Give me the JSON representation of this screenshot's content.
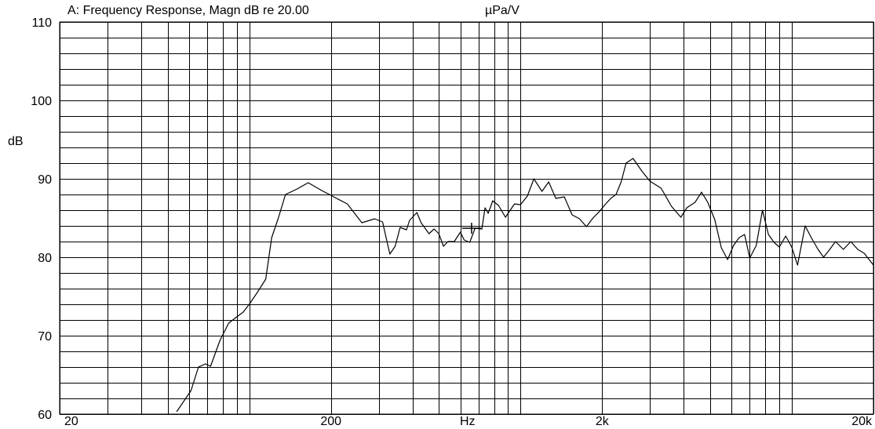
{
  "header": {
    "title": "A: Frequency Response, Magn dB re 20.00",
    "unit": "µPa/V"
  },
  "chart_data": {
    "type": "line",
    "title": "A: Frequency Response, Magn dB re 20.00",
    "ylabel": "dB",
    "xlabel": "Hz",
    "x_scale": "log",
    "xlim": [
      20,
      20000
    ],
    "ylim": [
      60,
      110
    ],
    "grid": true,
    "x_ticks": [
      {
        "value": 20,
        "label": "20"
      },
      {
        "value": 200,
        "label": "200"
      },
      {
        "value": 2000,
        "label": "2k"
      },
      {
        "value": 20000,
        "label": "20k"
      }
    ],
    "y_ticks": [
      {
        "value": 60,
        "label": "60"
      },
      {
        "value": 70,
        "label": "70"
      },
      {
        "value": 80,
        "label": "80"
      },
      {
        "value": 90,
        "label": "90"
      },
      {
        "value": 100,
        "label": "100"
      },
      {
        "value": 110,
        "label": "110"
      }
    ],
    "cursor": {
      "x": 660,
      "y": 83.7
    },
    "series": [
      {
        "color": "#000000",
        "x": [
          54,
          61,
          65,
          69,
          72,
          78,
          84,
          90,
          95,
          100,
          107,
          115,
          121,
          128,
          136,
          150,
          165,
          185,
          200,
          210,
          230,
          260,
          290,
          310,
          330,
          345,
          360,
          380,
          390,
          415,
          430,
          460,
          480,
          500,
          520,
          540,
          570,
          600,
          620,
          650,
          680,
          720,
          740,
          760,
          790,
          830,
          880,
          950,
          1000,
          1060,
          1120,
          1200,
          1270,
          1350,
          1450,
          1550,
          1650,
          1750,
          1850,
          1950,
          2050,
          2150,
          2250,
          2350,
          2450,
          2600,
          2800,
          3000,
          3300,
          3600,
          3900,
          4100,
          4400,
          4650,
          4900,
          5200,
          5500,
          5800,
          6100,
          6400,
          6700,
          7000,
          7400,
          7800,
          8200,
          8600,
          9000,
          9500,
          10000,
          10500,
          11200,
          11800,
          12500,
          13100,
          13800,
          14500,
          15500,
          16500,
          17500,
          18500,
          20000
        ],
        "values": [
          60.3,
          63.0,
          66.0,
          66.4,
          66.1,
          69.4,
          71.6,
          72.4,
          73.0,
          74.0,
          75.5,
          77.2,
          82.5,
          85.0,
          88.0,
          88.7,
          89.5,
          88.5,
          87.9,
          87.5,
          86.8,
          84.4,
          84.9,
          84.5,
          80.4,
          81.4,
          83.8,
          83.5,
          84.7,
          85.7,
          84.4,
          83.0,
          83.6,
          83.0,
          81.4,
          82.0,
          82.0,
          83.2,
          82.2,
          81.9,
          83.7,
          83.6,
          86.3,
          85.6,
          87.2,
          86.6,
          85.1,
          86.8,
          86.7,
          87.8,
          90.0,
          88.4,
          89.6,
          87.5,
          87.7,
          85.4,
          84.9,
          83.9,
          85.0,
          85.8,
          86.7,
          87.5,
          88.0,
          89.6,
          92.0,
          92.6,
          91.0,
          89.7,
          88.8,
          86.5,
          85.1,
          86.3,
          87.0,
          88.3,
          87.0,
          84.8,
          81.2,
          79.7,
          81.5,
          82.5,
          82.9,
          79.9,
          81.5,
          86.0,
          82.9,
          81.9,
          81.3,
          82.7,
          81.3,
          79.0,
          84.0,
          82.5,
          81.0,
          80.0,
          81.0,
          82.0,
          81.0,
          82.0,
          81.0,
          80.5,
          79.0
        ]
      }
    ]
  }
}
